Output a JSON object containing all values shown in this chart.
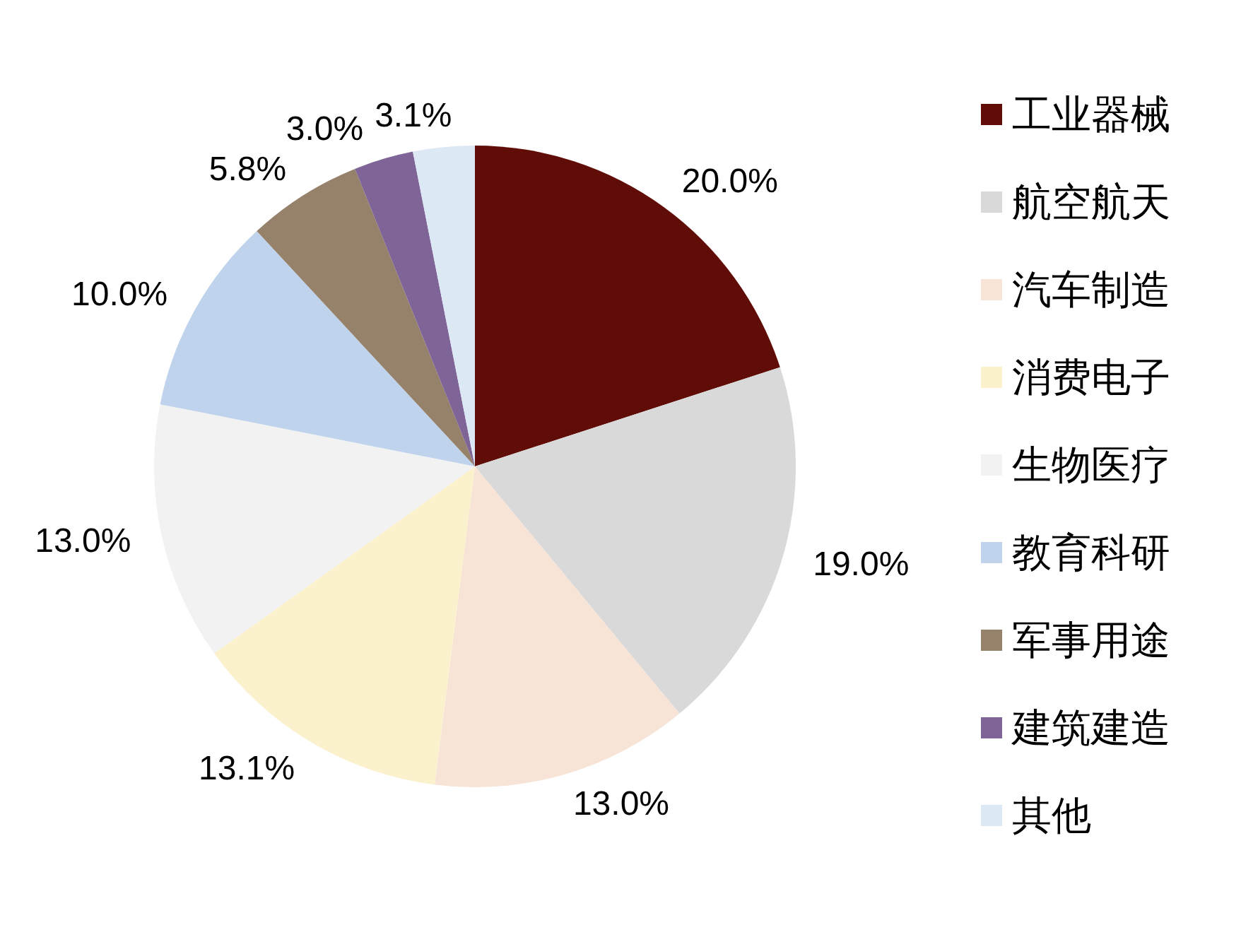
{
  "chart_data": {
    "type": "pie",
    "categories": [
      "工业器械",
      "航空航天",
      "汽车制造",
      "消费电子",
      "生物医疗",
      "教育科研",
      "军事用途",
      "建筑建造",
      "其他"
    ],
    "values": [
      20.0,
      19.0,
      13.0,
      13.1,
      13.0,
      10.0,
      5.8,
      3.0,
      3.1
    ],
    "colors": [
      "#600d07",
      "#d9d9d9",
      "#f7e4d7",
      "#fbf1cc",
      "#f2f2f2",
      "#bfd4ec",
      "#96816a",
      "#7f6498",
      "#dde8f5"
    ],
    "value_labels": [
      "20.0%",
      "19.0%",
      "13.0%",
      "13.1%",
      "13.0%",
      "10.0%",
      "5.8%",
      "3.0%",
      "3.1%"
    ],
    "legend": "right"
  }
}
